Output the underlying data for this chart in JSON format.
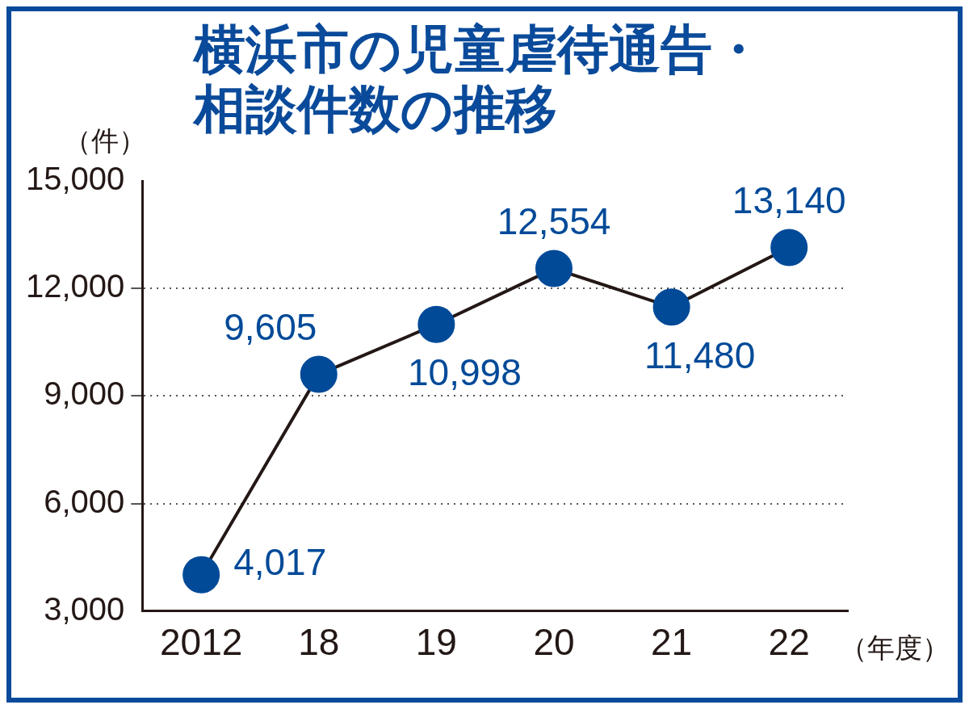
{
  "chart_data": {
    "type": "line",
    "title": "横浜市の児童虐待通告・相談件数の推移",
    "ylabel": "（件）",
    "xlabel": "（年度）",
    "categories": [
      "2012",
      "18",
      "19",
      "20",
      "21",
      "22"
    ],
    "series": [
      {
        "color": "#004a98",
        "values": [
          4017,
          9605,
          10998,
          12554,
          11480,
          13140
        ],
        "value_labels": [
          "4,017",
          "9,605",
          "10,998",
          "12,554",
          "11,480",
          "13,140"
        ]
      }
    ],
    "ylim": [
      3000,
      15000
    ],
    "yticks": [
      {
        "value": 3000,
        "label": "3,000"
      },
      {
        "value": 6000,
        "label": "6,000"
      },
      {
        "value": 9000,
        "label": "9,000"
      },
      {
        "value": 12000,
        "label": "12,000"
      },
      {
        "value": 15000,
        "label": "15,000"
      }
    ],
    "grid": "y",
    "marker": "circle",
    "line_style": "solid",
    "legend": false
  }
}
